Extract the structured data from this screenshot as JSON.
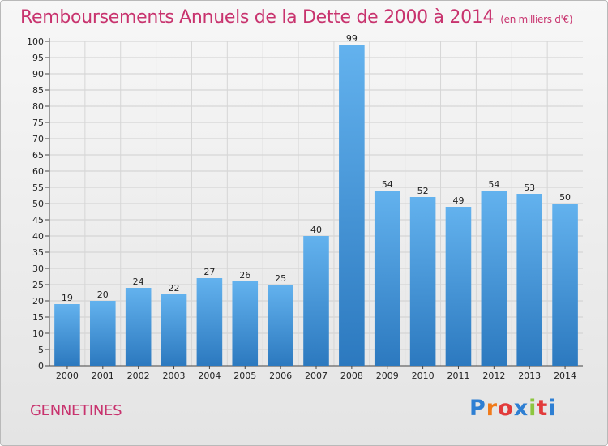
{
  "title": "Remboursements Annuels de la Dette de 2000 à 2014",
  "subtitle": "(en milliers d'€)",
  "commune": "GENNETINES",
  "logo": {
    "letters": [
      "P",
      "r",
      "o",
      "x",
      "i",
      "t",
      "i"
    ],
    "colors": [
      "#2e7fd3",
      "#f07a1a",
      "#e23b3b",
      "#2e7fd3",
      "#8cc63f",
      "#e23b3b",
      "#2e7fd3"
    ]
  },
  "colors": {
    "bar_top": "#63b2ee",
    "bar_bottom": "#2c79bf",
    "title": "#c8336e"
  },
  "chart_data": {
    "type": "bar",
    "title": "Remboursements Annuels de la Dette de 2000 à 2014",
    "subtitle": "(en milliers d'€)",
    "categories": [
      "2000",
      "2001",
      "2002",
      "2003",
      "2004",
      "2005",
      "2006",
      "2007",
      "2008",
      "2009",
      "2010",
      "2011",
      "2012",
      "2013",
      "2014"
    ],
    "values": [
      19,
      20,
      24,
      22,
      27,
      26,
      25,
      40,
      99,
      54,
      52,
      49,
      54,
      53,
      50
    ],
    "ylim": [
      0,
      100
    ],
    "yticks": [
      0,
      5,
      10,
      15,
      20,
      25,
      30,
      35,
      40,
      45,
      50,
      55,
      60,
      65,
      70,
      75,
      80,
      85,
      90,
      95,
      100
    ],
    "grid": true,
    "legend": "none"
  }
}
